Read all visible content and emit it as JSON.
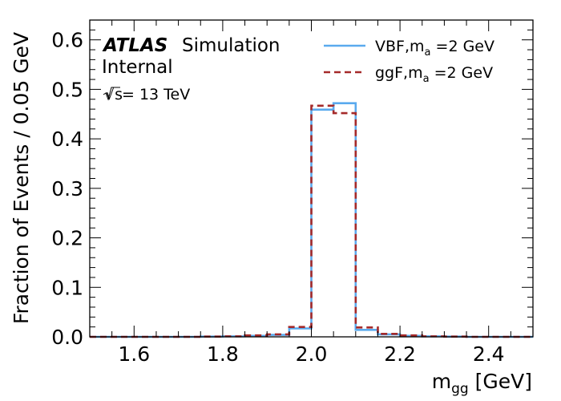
{
  "chart_data": {
    "type": "line",
    "style": "step-histogram",
    "xlabel_main": "m",
    "xlabel_sub": "gg",
    "xlabel_unit": " [GeV]",
    "ylabel": "Fraction of Events / 0.05 GeV",
    "xlim": [
      1.5,
      2.5
    ],
    "ylim": [
      0.0,
      0.64
    ],
    "xticks": [
      1.6,
      1.8,
      2.0,
      2.2,
      2.4
    ],
    "xtick_labels": [
      "1.6",
      "1.8",
      "2.0",
      "2.2",
      "2.4"
    ],
    "yticks": [
      0.0,
      0.1,
      0.2,
      0.3,
      0.4,
      0.5,
      0.6
    ],
    "ytick_labels": [
      "0.0",
      "0.1",
      "0.2",
      "0.3",
      "0.4",
      "0.5",
      "0.6"
    ],
    "bin_edges": [
      1.5,
      1.55,
      1.6,
      1.65,
      1.7,
      1.75,
      1.8,
      1.85,
      1.9,
      1.95,
      2.0,
      2.05,
      2.1,
      2.15,
      2.2,
      2.25,
      2.3,
      2.35,
      2.4,
      2.45,
      2.5
    ],
    "series": [
      {
        "legend_main": "VBF,m",
        "legend_sub": "a",
        "legend_tail": " =2 GeV",
        "color": "#5aaaee",
        "dash": "solid",
        "values": [
          0.0,
          0.0,
          0.0,
          0.0,
          0.0,
          0.0005,
          0.001,
          0.002,
          0.004,
          0.017,
          0.459,
          0.472,
          0.014,
          0.005,
          0.002,
          0.001,
          0.0005,
          0.0,
          0.0,
          0.0
        ]
      },
      {
        "legend_main": "ggF,m",
        "legend_sub": "a",
        "legend_tail": " =2 GeV",
        "color": "#a52a2a",
        "dash": "dashed",
        "values": [
          0.0,
          0.0,
          0.0,
          0.0,
          0.0,
          0.0005,
          0.001,
          0.003,
          0.005,
          0.02,
          0.467,
          0.452,
          0.019,
          0.006,
          0.003,
          0.001,
          0.0005,
          0.0,
          0.0,
          0.0
        ]
      }
    ],
    "annotations": {
      "atlas": "ATLAS",
      "simulation": "Simulation",
      "internal": "Internal",
      "sqrt_s": "√s",
      "energy": " = 13 TeV"
    },
    "legend_position": "top-right",
    "grid": false
  }
}
